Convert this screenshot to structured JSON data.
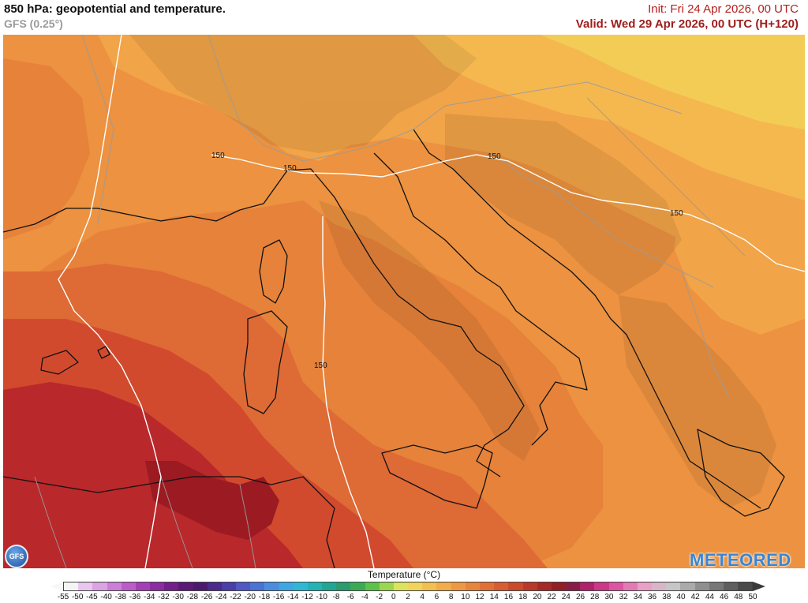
{
  "header": {
    "title": "850 hPa: geopotential and temperature.",
    "model": "GFS (0.25°)",
    "init": "Init: Fri 24 Apr 2026, 00 UTC",
    "valid": "Valid: Wed 29 Apr 2026, 00 UTC (H+120)"
  },
  "map": {
    "contour_value": "150",
    "contour_labels": [
      "150",
      "150",
      "150",
      "150",
      "150"
    ],
    "colors": {
      "t16": "#d24a2e",
      "t14": "#e06636",
      "t12": "#ea8a3e",
      "t10": "#f2a448",
      "t8": "#f5b84f",
      "t6": "#f2cc55",
      "t18": "#b9282b",
      "t20": "#9c1a22"
    }
  },
  "logos": {
    "gfs": "GFS",
    "brand": "METEORED"
  },
  "legend": {
    "title": "Temperature (°C)",
    "ticks": [
      "-55",
      "-50",
      "-45",
      "-40",
      "-38",
      "-36",
      "-34",
      "-32",
      "-30",
      "-28",
      "-26",
      "-24",
      "-22",
      "-20",
      "-18",
      "-16",
      "-14",
      "-12",
      "-10",
      "-8",
      "-6",
      "-4",
      "-2",
      "0",
      "2",
      "4",
      "6",
      "8",
      "10",
      "12",
      "14",
      "16",
      "18",
      "20",
      "22",
      "24",
      "26",
      "28",
      "30",
      "32",
      "34",
      "36",
      "38",
      "40",
      "42",
      "44",
      "46",
      "48",
      "50"
    ],
    "colors": [
      "#f4f4f4",
      "#e8c6ee",
      "#dba3e3",
      "#cc7fd6",
      "#bb5cc8",
      "#a43fb6",
      "#8c2ba2",
      "#73208c",
      "#5a1a78",
      "#4b1a6e",
      "#4a2a8c",
      "#4a3ea8",
      "#4f58c4",
      "#4b72d6",
      "#4a8ee0",
      "#3ea7e3",
      "#2fb8d6",
      "#22b3b5",
      "#1fa793",
      "#2a9c6e",
      "#3bab53",
      "#5cc24a",
      "#9bd74e",
      "#dbe45a",
      "#f1d45a",
      "#f3c04f",
      "#f2ac49",
      "#ee9843",
      "#e8843c",
      "#e27035",
      "#d95d31",
      "#cc4a2c",
      "#bb3729",
      "#a72a26",
      "#931f24",
      "#8a1d44",
      "#b0236a",
      "#cc3787",
      "#dd55a0",
      "#e47ab3",
      "#e99fc6",
      "#d9b5c8",
      "#c6c6c6",
      "#aaaaaa",
      "#8f8f8f",
      "#777777",
      "#5f5f5f",
      "#4a4a4a"
    ]
  }
}
